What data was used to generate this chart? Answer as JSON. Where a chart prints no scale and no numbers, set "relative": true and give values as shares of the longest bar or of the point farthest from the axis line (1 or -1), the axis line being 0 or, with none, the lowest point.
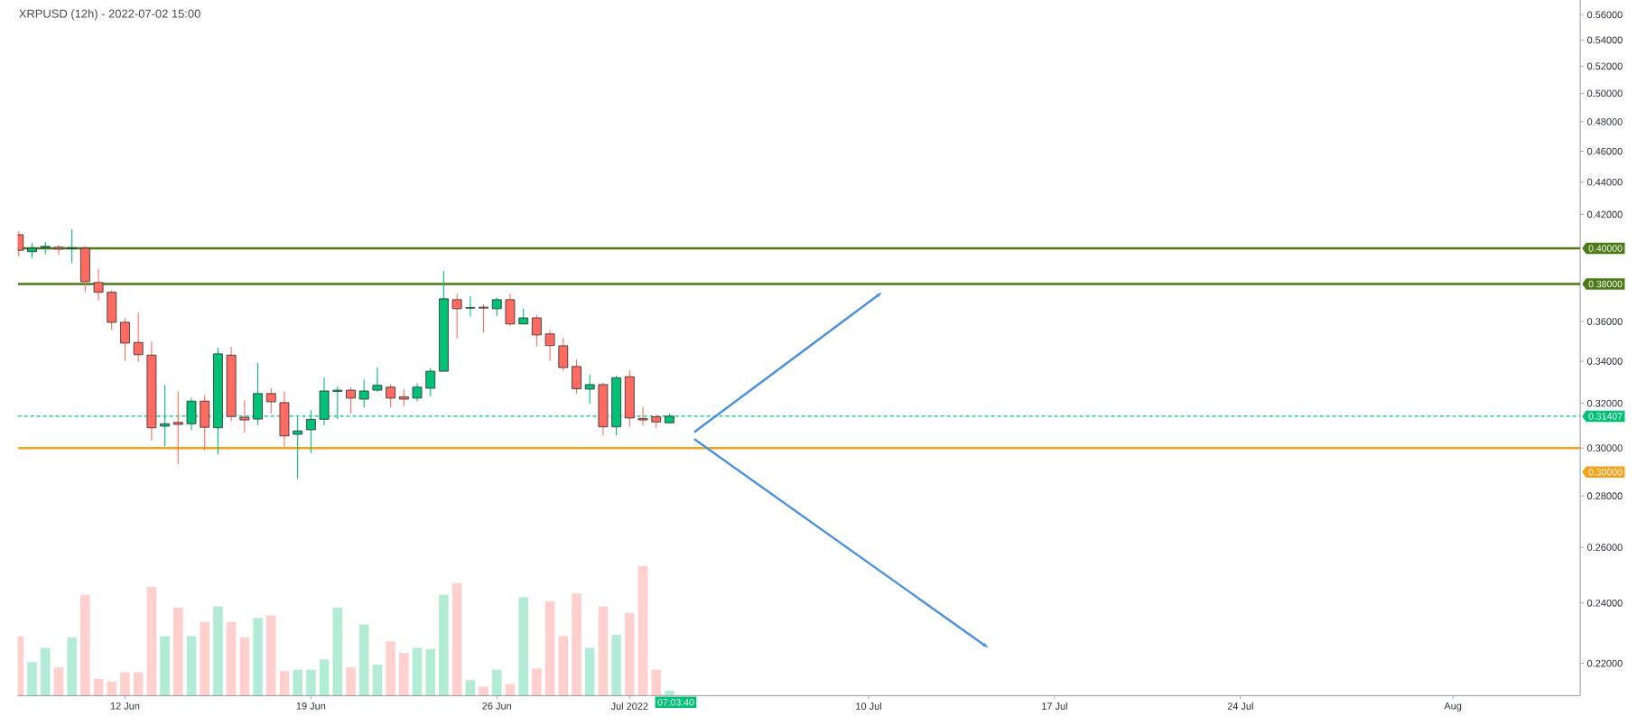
{
  "chart_data": [
    {
      "type": "candlestick",
      "title": "XRPUSD (12h) - 2022-07-02 15:00",
      "x": [
        "2022-06-08T00:00",
        "2022-06-08T12:00",
        "2022-06-09T00:00",
        "2022-06-09T12:00",
        "2022-06-10T00:00",
        "2022-06-10T12:00",
        "2022-06-11T00:00",
        "2022-06-11T12:00",
        "2022-06-12T00:00",
        "2022-06-12T12:00",
        "2022-06-13T00:00",
        "2022-06-13T12:00",
        "2022-06-14T00:00",
        "2022-06-14T12:00",
        "2022-06-15T00:00",
        "2022-06-15T12:00",
        "2022-06-16T00:00",
        "2022-06-16T12:00",
        "2022-06-17T00:00",
        "2022-06-17T12:00",
        "2022-06-18T00:00",
        "2022-06-18T12:00",
        "2022-06-19T00:00",
        "2022-06-19T12:00",
        "2022-06-20T00:00",
        "2022-06-20T12:00",
        "2022-06-21T00:00",
        "2022-06-21T12:00",
        "2022-06-22T00:00",
        "2022-06-22T12:00",
        "2022-06-23T00:00",
        "2022-06-23T12:00",
        "2022-06-24T00:00",
        "2022-06-24T12:00",
        "2022-06-25T00:00",
        "2022-06-25T12:00",
        "2022-06-26T00:00",
        "2022-06-26T12:00",
        "2022-06-27T00:00",
        "2022-06-27T12:00",
        "2022-06-28T00:00",
        "2022-06-28T12:00",
        "2022-06-29T00:00",
        "2022-06-29T12:00",
        "2022-06-30T00:00",
        "2022-06-30T12:00",
        "2022-07-01T00:00",
        "2022-07-01T12:00",
        "2022-07-02T00:00",
        "2022-07-02T12:00"
      ],
      "ohlc": [
        [
          0.4079,
          0.4098,
          0.3954,
          0.3989
        ],
        [
          0.3981,
          0.4032,
          0.3945,
          0.4
        ],
        [
          0.4004,
          0.4037,
          0.3967,
          0.4011
        ],
        [
          0.4006,
          0.402,
          0.3961,
          0.3996
        ],
        [
          0.3998,
          0.4111,
          0.3915,
          0.4004
        ],
        [
          0.4,
          0.4013,
          0.3757,
          0.3813
        ],
        [
          0.3808,
          0.3884,
          0.3711,
          0.3755
        ],
        [
          0.3755,
          0.3767,
          0.3556,
          0.3596
        ],
        [
          0.3596,
          0.3618,
          0.3402,
          0.349
        ],
        [
          0.3493,
          0.3646,
          0.3397,
          0.3432
        ],
        [
          0.343,
          0.3498,
          0.3032,
          0.3089
        ],
        [
          0.3096,
          0.3286,
          0.3006,
          0.3107
        ],
        [
          0.3113,
          0.3255,
          0.2931,
          0.3104
        ],
        [
          0.3107,
          0.3225,
          0.3078,
          0.321
        ],
        [
          0.321,
          0.3237,
          0.2991,
          0.3091
        ],
        [
          0.3089,
          0.3466,
          0.2973,
          0.3436
        ],
        [
          0.343,
          0.3471,
          0.3117,
          0.314
        ],
        [
          0.3136,
          0.3214,
          0.3068,
          0.3124
        ],
        [
          0.3128,
          0.3391,
          0.31,
          0.3245
        ],
        [
          0.3245,
          0.327,
          0.3154,
          0.3207
        ],
        [
          0.3203,
          0.3255,
          0.3005,
          0.3053
        ],
        [
          0.306,
          0.3136,
          0.287,
          0.3075
        ],
        [
          0.308,
          0.3168,
          0.2977,
          0.3127
        ],
        [
          0.3127,
          0.332,
          0.31,
          0.3257
        ],
        [
          0.3255,
          0.3278,
          0.3128,
          0.3261
        ],
        [
          0.3261,
          0.3274,
          0.3154,
          0.3224
        ],
        [
          0.3219,
          0.3311,
          0.3181,
          0.3257
        ],
        [
          0.3261,
          0.3369,
          0.3253,
          0.3284
        ],
        [
          0.3275,
          0.329,
          0.3181,
          0.3224
        ],
        [
          0.323,
          0.3266,
          0.3187,
          0.3219
        ],
        [
          0.3224,
          0.3293,
          0.321,
          0.3275
        ],
        [
          0.327,
          0.3366,
          0.3231,
          0.3351
        ],
        [
          0.3351,
          0.3872,
          0.3351,
          0.372
        ],
        [
          0.3715,
          0.3748,
          0.3513,
          0.3667
        ],
        [
          0.367,
          0.3734,
          0.3626,
          0.3673
        ],
        [
          0.3675,
          0.3691,
          0.3542,
          0.367
        ],
        [
          0.3667,
          0.3725,
          0.3629,
          0.3715
        ],
        [
          0.3715,
          0.3748,
          0.3576,
          0.3587
        ],
        [
          0.3587,
          0.3667,
          0.3587,
          0.3619
        ],
        [
          0.3619,
          0.3634,
          0.3472,
          0.3531
        ],
        [
          0.3536,
          0.3556,
          0.3402,
          0.3477
        ],
        [
          0.3476,
          0.3516,
          0.3353,
          0.3369
        ],
        [
          0.3374,
          0.3408,
          0.3245,
          0.3268
        ],
        [
          0.3266,
          0.3334,
          0.3198,
          0.3287
        ],
        [
          0.3287,
          0.3297,
          0.3056,
          0.3093
        ],
        [
          0.3093,
          0.333,
          0.3056,
          0.332
        ],
        [
          0.3325,
          0.3356,
          0.3093,
          0.3133
        ],
        [
          0.3131,
          0.3184,
          0.31,
          0.3124
        ],
        [
          0.3138,
          0.3148,
          0.3088,
          0.3115
        ],
        [
          0.3111,
          0.3152,
          0.3111,
          0.3141
        ]
      ],
      "colors": [
        "#ff6b60",
        "#00c176",
        "#00c176",
        "#ff6b60",
        "#00c176",
        "#ff6b60",
        "#ff6b60",
        "#ff6b60",
        "#ff6b60",
        "#ff6b60",
        "#ff6b60",
        "#00c176",
        "#ff6b60",
        "#00c176",
        "#ff6b60",
        "#00c176",
        "#ff6b60",
        "#ff6b60",
        "#00c176",
        "#ff6b60",
        "#ff6b60",
        "#00c176",
        "#00c176",
        "#00c176",
        "#00c176",
        "#ff6b60",
        "#00c176",
        "#00c176",
        "#ff6b60",
        "#ff6b60",
        "#00c176",
        "#00c176",
        "#00c176",
        "#ff6b60",
        "#00c176",
        "#ff6b60",
        "#00c176",
        "#ff6b60",
        "#00c176",
        "#ff6b60",
        "#ff6b60",
        "#ff6b60",
        "#ff6b60",
        "#00c176",
        "#ff6b60",
        "#00c176",
        "#ff6b60",
        "#ff6b60",
        "#ff6b60",
        "#00c176"
      ],
      "series": [
        {
          "type": "line",
          "color": "#4a90e2",
          "x": [
            "2022-07-03T11:00",
            "2022-07-10T12:00"
          ],
          "values": [
            0.3072,
            0.3754
          ]
        },
        {
          "type": "line",
          "color": "#4a90e2",
          "x": [
            "2022-07-03T11:00",
            "2022-07-14T12:00"
          ],
          "values": [
            0.3037,
            0.225
          ]
        }
      ],
      "ref_lines": [
        {
          "axis": "y",
          "value": 0.4,
          "label": "0.40000",
          "color": "#4c7a16"
        },
        {
          "axis": "y",
          "value": 0.38,
          "label": "0.38000",
          "color": "#4c7a16"
        },
        {
          "axis": "y",
          "value": 0.31407,
          "label": "0.31407",
          "color": "#00c176",
          "line_style": "dashed"
        },
        {
          "axis": "y",
          "value": 0.3,
          "label": "0.30000",
          "color": "#f7a21b"
        }
      ],
      "annotations": [
        "07:03:40"
      ],
      "xlim": [
        "2022-06-07T23:00",
        "2022-08-05T19:00"
      ],
      "ylim": [
        0.21,
        0.572
      ],
      "log": true,
      "xticks": [
        {
          "value": "2022-06-12",
          "label": "12 Jun"
        },
        {
          "value": "2022-06-19",
          "label": "19 Jun"
        },
        {
          "value": "2022-06-26",
          "label": "26 Jun"
        },
        {
          "value": "2022-07-01",
          "label": "Jul 2022"
        },
        {
          "value": "2022-07-03",
          "label": null
        },
        {
          "value": "2022-07-10",
          "label": "10 Jul"
        },
        {
          "value": "2022-07-17",
          "label": "17 Jul"
        },
        {
          "value": "2022-07-24",
          "label": "24 Jul"
        },
        {
          "value": "2022-08-01",
          "label": "Aug"
        }
      ],
      "yticks": [
        {
          "value": 0.22,
          "label": "0.22000"
        },
        {
          "value": 0.24,
          "label": "0.24000"
        },
        {
          "value": 0.26,
          "label": "0.26000"
        },
        {
          "value": 0.28,
          "label": "0.28000"
        },
        {
          "value": 0.3,
          "label": "0.30000"
        },
        {
          "value": 0.32,
          "label": "0.32000"
        },
        {
          "value": 0.34,
          "label": "0.34000"
        },
        {
          "value": 0.36,
          "label": "0.36000"
        },
        {
          "value": 0.42,
          "label": "0.42000"
        },
        {
          "value": 0.44,
          "label": "0.44000"
        },
        {
          "value": 0.46,
          "label": "0.46000"
        },
        {
          "value": 0.48,
          "label": "0.48000"
        },
        {
          "value": 0.5,
          "label": "0.50000"
        },
        {
          "value": 0.52,
          "label": "0.52000"
        },
        {
          "value": 0.54,
          "label": "0.54000"
        },
        {
          "value": 0.56,
          "label": "0.56000"
        }
      ]
    },
    {
      "type": "bar",
      "relative": true,
      "tick_labels": false,
      "xlim": [
        "2022-06-07T23:00",
        "2022-08-05T19:00"
      ],
      "x": [
        "2022-06-08T00:00",
        "2022-06-08T12:00",
        "2022-06-09T00:00",
        "2022-06-09T12:00",
        "2022-06-10T00:00",
        "2022-06-10T12:00",
        "2022-06-11T00:00",
        "2022-06-11T12:00",
        "2022-06-12T00:00",
        "2022-06-12T12:00",
        "2022-06-13T00:00",
        "2022-06-13T12:00",
        "2022-06-14T00:00",
        "2022-06-14T12:00",
        "2022-06-15T00:00",
        "2022-06-15T12:00",
        "2022-06-16T00:00",
        "2022-06-16T12:00",
        "2022-06-17T00:00",
        "2022-06-17T12:00",
        "2022-06-18T00:00",
        "2022-06-18T12:00",
        "2022-06-19T00:00",
        "2022-06-19T12:00",
        "2022-06-20T00:00",
        "2022-06-20T12:00",
        "2022-06-21T00:00",
        "2022-06-21T12:00",
        "2022-06-22T00:00",
        "2022-06-22T12:00",
        "2022-06-23T00:00",
        "2022-06-23T12:00",
        "2022-06-24T00:00",
        "2022-06-24T12:00",
        "2022-06-25T00:00",
        "2022-06-25T12:00",
        "2022-06-26T00:00",
        "2022-06-26T12:00",
        "2022-06-27T00:00",
        "2022-06-27T12:00",
        "2022-06-28T00:00",
        "2022-06-28T12:00",
        "2022-06-29T00:00",
        "2022-06-29T12:00",
        "2022-06-30T00:00",
        "2022-06-30T12:00",
        "2022-07-01T00:00",
        "2022-07-01T12:00",
        "2022-07-02T00:00",
        "2022-07-02T12:00"
      ],
      "values": [
        0.46,
        0.26,
        0.37,
        0.22,
        0.45,
        0.78,
        0.13,
        0.11,
        0.18,
        0.18,
        0.84,
        0.46,
        0.68,
        0.46,
        0.57,
        0.69,
        0.57,
        0.45,
        0.6,
        0.62,
        0.19,
        0.2,
        0.2,
        0.28,
        0.68,
        0.22,
        0.55,
        0.24,
        0.42,
        0.33,
        0.37,
        0.36,
        0.78,
        0.87,
        0.12,
        0.07,
        0.2,
        0.09,
        0.76,
        0.21,
        0.73,
        0.46,
        0.79,
        0.37,
        0.69,
        0.47,
        0.64,
        1,
        0.2,
        0.04
      ],
      "colors": [
        "#ffd0cd",
        "#b3ecd6",
        "#b3ecd6",
        "#ffd0cd",
        "#b3ecd6",
        "#ffd0cd",
        "#ffd0cd",
        "#ffd0cd",
        "#ffd0cd",
        "#ffd0cd",
        "#ffd0cd",
        "#b3ecd6",
        "#ffd0cd",
        "#b3ecd6",
        "#ffd0cd",
        "#b3ecd6",
        "#ffd0cd",
        "#ffd0cd",
        "#b3ecd6",
        "#ffd0cd",
        "#ffd0cd",
        "#b3ecd6",
        "#b3ecd6",
        "#b3ecd6",
        "#b3ecd6",
        "#ffd0cd",
        "#b3ecd6",
        "#b3ecd6",
        "#ffd0cd",
        "#ffd0cd",
        "#b3ecd6",
        "#b3ecd6",
        "#b3ecd6",
        "#ffd0cd",
        "#b3ecd6",
        "#ffd0cd",
        "#b3ecd6",
        "#ffd0cd",
        "#b3ecd6",
        "#ffd0cd",
        "#ffd0cd",
        "#ffd0cd",
        "#ffd0cd",
        "#b3ecd6",
        "#ffd0cd",
        "#b3ecd6",
        "#ffd0cd",
        "#ffd0cd",
        "#ffd0cd",
        "#b3ecd6"
      ]
    }
  ]
}
